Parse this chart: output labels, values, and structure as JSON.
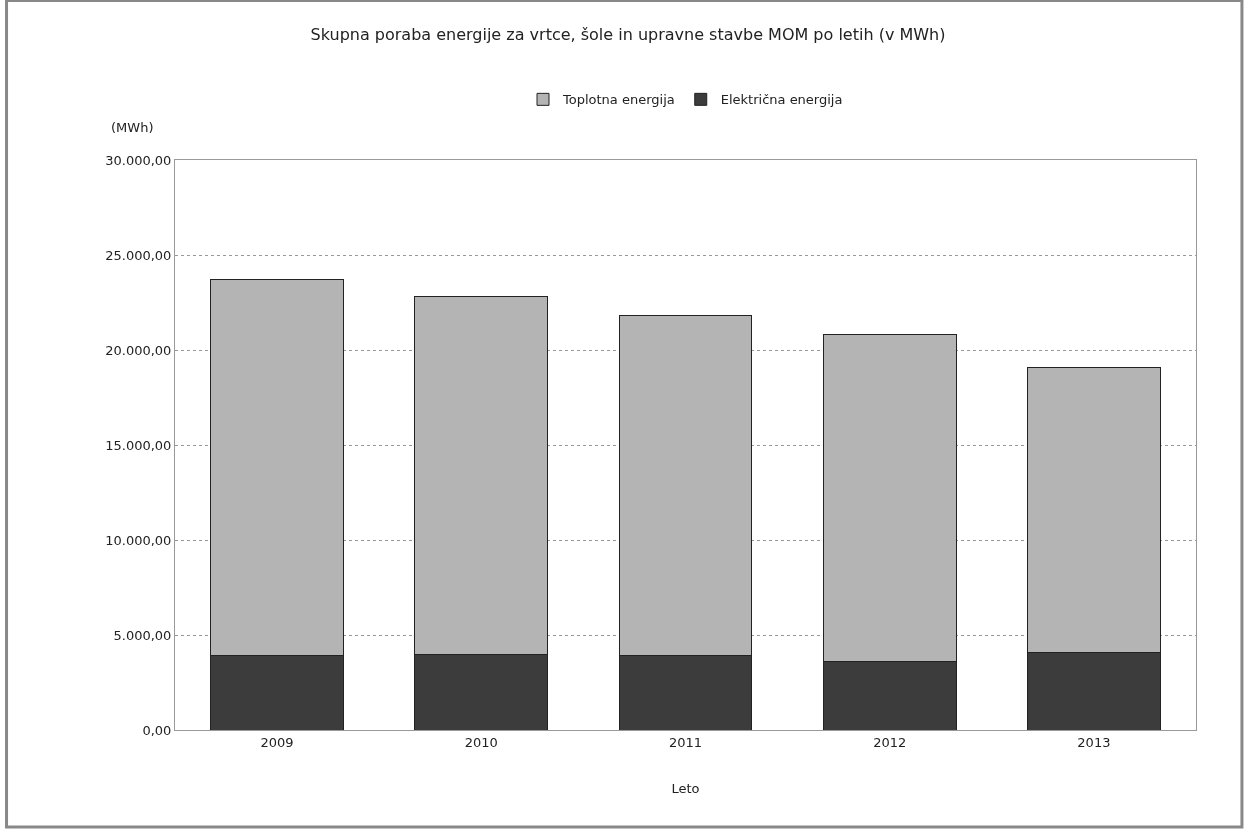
{
  "chart_data": {
    "type": "bar",
    "title": "Skupna poraba energije za vrtce, šole in upravne stavbe MOM po letih (v MWh)",
    "ylabel": "(MWh)",
    "xlabel": "Leto",
    "categories": [
      "2009",
      "2010",
      "2011",
      "2012",
      "2013"
    ],
    "stacked": true,
    "series": [
      {
        "name": "Električna energija",
        "color": "#3c3c3c",
        "values": [
          3900,
          4000,
          3900,
          3600,
          4100
        ]
      },
      {
        "name": "Toplotna energija",
        "color": "#b4b4b4",
        "values": [
          19800,
          18800,
          17900,
          17200,
          15000
        ]
      }
    ],
    "ylim": [
      0,
      30000
    ],
    "yticks": [
      {
        "value": 0,
        "label": "0,00"
      },
      {
        "value": 5000,
        "label": "5.000,00"
      },
      {
        "value": 10000,
        "label": "10.000,00"
      },
      {
        "value": 15000,
        "label": "15.000,00"
      },
      {
        "value": 20000,
        "label": "20.000,00"
      },
      {
        "value": 25000,
        "label": "25.000,00"
      },
      {
        "value": 30000,
        "label": "30.000,00"
      }
    ],
    "grid": "y",
    "legend": "top"
  }
}
